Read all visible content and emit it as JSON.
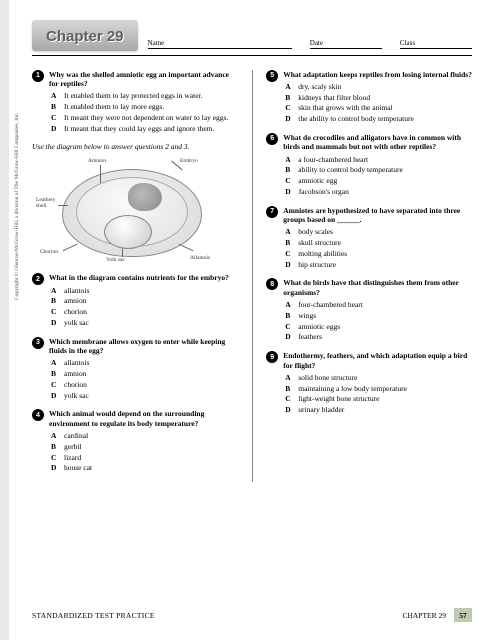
{
  "header": {
    "chapter_label": "Chapter 29",
    "chapter_fontsize": 15,
    "name_label": "Name",
    "date_label": "Date",
    "class_label": "Class"
  },
  "instruction": "Use the diagram below to answer questions 2 and 3.",
  "diagram": {
    "labels": {
      "amnion": "Amnion",
      "embryo": "Embryo",
      "leathery_shell": "Leathery\nshell",
      "chorion": "Chorion",
      "yolk_sac": "Yolk sac",
      "allantois": "Allantois"
    }
  },
  "left_questions": [
    {
      "num": "1",
      "text": "Why was the shelled amniotic egg an important advance for reptiles?",
      "choices": [
        {
          "l": "A",
          "t": "It enabled them to lay protected eggs in water."
        },
        {
          "l": "B",
          "t": "It enabled them to lay more eggs."
        },
        {
          "l": "C",
          "t": "It meant they were not dependent on water to lay eggs."
        },
        {
          "l": "D",
          "t": "It meant that they could lay eggs and ignore them."
        }
      ]
    },
    {
      "num": "2",
      "text": "What in the diagram contains nutrients for the embryo?",
      "choices": [
        {
          "l": "A",
          "t": "allantois"
        },
        {
          "l": "B",
          "t": "amnion"
        },
        {
          "l": "C",
          "t": "chorion"
        },
        {
          "l": "D",
          "t": "yolk sac"
        }
      ]
    },
    {
      "num": "3",
      "text": "Which membrane allows oxygen to enter while keeping fluids in the egg?",
      "choices": [
        {
          "l": "A",
          "t": "allantois"
        },
        {
          "l": "B",
          "t": "amnion"
        },
        {
          "l": "C",
          "t": "chorion"
        },
        {
          "l": "D",
          "t": "yolk sac"
        }
      ]
    },
    {
      "num": "4",
      "text": "Which animal would depend on the surrounding environment to regulate its body temperature?",
      "choices": [
        {
          "l": "A",
          "t": "cardinal"
        },
        {
          "l": "B",
          "t": "gerbil"
        },
        {
          "l": "C",
          "t": "lizard"
        },
        {
          "l": "D",
          "t": "house cat"
        }
      ]
    }
  ],
  "right_questions": [
    {
      "num": "5",
      "text": "What adaptation keeps reptiles from losing internal fluids?",
      "choices": [
        {
          "l": "A",
          "t": "dry, scaly skin"
        },
        {
          "l": "B",
          "t": "kidneys that filter blood"
        },
        {
          "l": "C",
          "t": "skin that grows with the animal"
        },
        {
          "l": "D",
          "t": "the ability to control body temperature"
        }
      ]
    },
    {
      "num": "6",
      "text": "What do crocodiles and alligators have in common with birds and mammals but not with other reptiles?",
      "choices": [
        {
          "l": "A",
          "t": "a four-chambered heart"
        },
        {
          "l": "B",
          "t": "ability to control body temperature"
        },
        {
          "l": "C",
          "t": "amniotic egg"
        },
        {
          "l": "D",
          "t": "Jacobson's organ"
        }
      ]
    },
    {
      "num": "7",
      "text": "Amniotes are hypothesized to have separated into three groups based on ______.",
      "choices": [
        {
          "l": "A",
          "t": "body scales"
        },
        {
          "l": "B",
          "t": "skull structure"
        },
        {
          "l": "C",
          "t": "molting abilities"
        },
        {
          "l": "D",
          "t": "hip structure"
        }
      ]
    },
    {
      "num": "8",
      "text": "What do birds have that distinguishes them from other organisms?",
      "choices": [
        {
          "l": "A",
          "t": "four-chambered heart"
        },
        {
          "l": "B",
          "t": "wings"
        },
        {
          "l": "C",
          "t": "amniotic eggs"
        },
        {
          "l": "D",
          "t": "feathers"
        }
      ]
    },
    {
      "num": "9",
      "text": "Endothermy, feathers, and which adaptation equip a bird for flight?",
      "choices": [
        {
          "l": "A",
          "t": "solid bone structure"
        },
        {
          "l": "B",
          "t": "maintaining a low body temperature"
        },
        {
          "l": "C",
          "t": "light-weight bone structure"
        },
        {
          "l": "D",
          "t": "urinary bladder"
        }
      ]
    }
  ],
  "footer": {
    "left": "STANDARDIZED TEST PRACTICE",
    "right": "CHAPTER 29",
    "page": "57",
    "page_bg": "#bfcab0"
  },
  "copyright": "Copyright © Glencoe/McGraw-Hill, a division of The McGraw-Hill Companies, Inc.",
  "colors": {
    "text": "#000000",
    "bg": "#ffffff",
    "badge_text": "#606060"
  }
}
